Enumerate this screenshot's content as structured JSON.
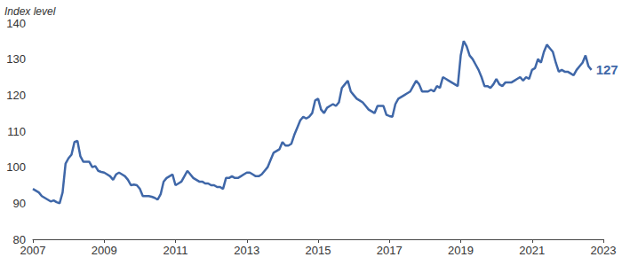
{
  "chart_data": {
    "type": "line",
    "ylabel": "Index level",
    "categories": [
      "2007",
      null,
      null,
      null,
      null,
      null,
      null,
      null,
      null,
      null,
      null,
      null,
      null,
      null,
      null,
      null,
      null,
      null,
      null,
      null,
      null,
      null,
      null,
      null,
      "2009",
      null,
      null,
      null,
      null,
      null,
      null,
      null,
      null,
      null,
      null,
      null,
      null,
      null,
      null,
      null,
      null,
      null,
      null,
      null,
      null,
      null,
      null,
      null,
      "2011",
      null,
      null,
      null,
      null,
      null,
      null,
      null,
      null,
      null,
      null,
      null,
      null,
      null,
      null,
      null,
      null,
      null,
      null,
      null,
      null,
      null,
      null,
      null,
      "2013",
      null,
      null,
      null,
      null,
      null,
      null,
      null,
      null,
      null,
      null,
      null,
      null,
      null,
      null,
      null,
      null,
      null,
      null,
      null,
      null,
      null,
      null,
      null,
      "2015",
      null,
      null,
      null,
      null,
      null,
      null,
      null,
      null,
      null,
      null,
      null,
      null,
      null,
      null,
      null,
      null,
      null,
      null,
      null,
      null,
      null,
      null,
      null,
      "2017",
      null,
      null,
      null,
      null,
      null,
      null,
      null,
      null,
      null,
      null,
      null,
      null,
      null,
      null,
      null,
      null,
      null,
      null,
      null,
      null,
      null,
      null,
      null,
      "2019",
      null,
      null,
      null,
      null,
      null,
      null,
      null,
      null,
      null,
      null,
      null,
      null,
      null,
      null,
      null,
      null,
      null,
      null,
      null,
      null,
      null,
      null,
      null,
      "2021",
      null,
      null,
      null,
      null,
      null,
      null,
      null,
      null,
      null,
      null,
      null,
      null,
      null,
      null,
      null,
      null,
      null,
      null,
      null,
      null,
      null,
      null,
      null,
      "2023"
    ],
    "values": [
      94,
      93.5,
      93,
      92,
      91.5,
      91,
      90.5,
      90.8,
      90.3,
      90,
      93,
      101,
      102.5,
      103.5,
      107,
      107.3,
      103,
      101.5,
      101.5,
      101.5,
      100,
      100.3,
      99,
      98.7,
      98.5,
      98,
      97.5,
      96.5,
      98,
      98.5,
      98,
      97.5,
      96.5,
      95,
      95.2,
      95,
      94,
      92,
      92,
      92,
      91.8,
      91.5,
      91,
      92.5,
      96,
      97,
      97.5,
      98,
      95,
      95.5,
      96,
      97.5,
      99,
      98,
      97,
      96.5,
      96,
      96,
      95.5,
      95.5,
      95,
      95,
      94.5,
      94.5,
      94,
      97,
      97,
      97.5,
      97,
      97,
      97.5,
      98,
      98.5,
      98.5,
      98,
      97.5,
      97.5,
      98,
      99,
      100,
      102,
      104,
      104.5,
      105,
      107,
      106,
      106,
      106.5,
      109,
      111,
      113,
      114,
      113.5,
      114,
      115,
      118.5,
      119,
      116,
      115,
      116.5,
      117,
      117.5,
      117,
      118,
      122,
      123,
      124,
      121,
      120,
      119,
      118.5,
      118,
      117,
      116,
      115.5,
      115,
      117,
      117,
      117,
      114.5,
      114.2,
      114,
      117.5,
      119,
      119.5,
      120,
      120.5,
      121,
      122.5,
      124,
      123,
      121,
      121,
      121,
      121.5,
      121,
      122.5,
      122,
      125,
      124.5,
      124,
      123.5,
      123,
      122.5,
      131,
      135,
      133.5,
      131,
      130,
      128.5,
      127,
      125,
      122.5,
      122.5,
      122,
      123,
      124.5,
      123,
      122.5,
      123.5,
      123.5,
      123.5,
      124,
      124.5,
      125,
      124,
      125,
      124.5,
      127,
      127.5,
      130,
      129,
      132,
      134,
      133,
      132,
      129,
      126.5,
      127,
      126.5,
      126.5,
      126,
      125.5,
      127,
      128,
      129,
      131,
      128,
      127,
      null,
      null,
      null,
      null
    ],
    "color": "#3f67a8",
    "ylim": [
      80,
      140
    ],
    "yticks": [
      80,
      90,
      100,
      110,
      120,
      130,
      140
    ],
    "grid": false,
    "annotations": [
      {
        "text": "127"
      }
    ]
  }
}
